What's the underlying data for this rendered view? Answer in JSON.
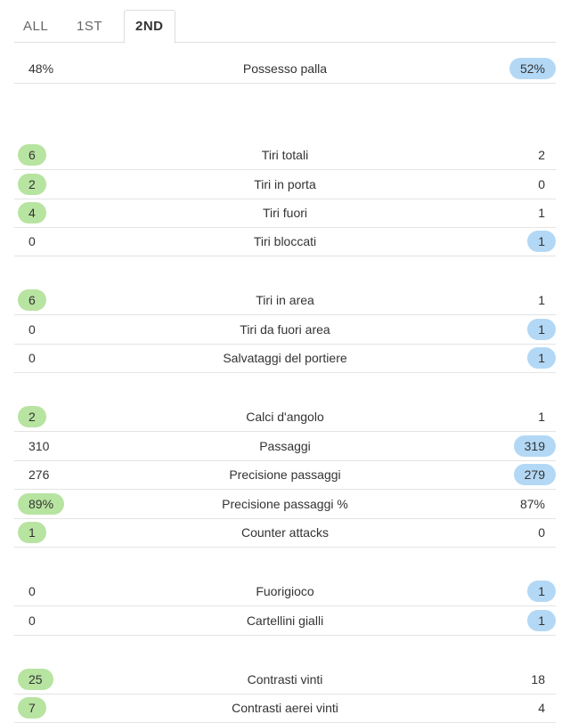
{
  "tabs": [
    {
      "label": "ALL",
      "active": false
    },
    {
      "label": "1ST",
      "active": false
    },
    {
      "label": "2ND",
      "active": true
    }
  ],
  "colors": {
    "home_highlight": "#b7e4a0",
    "away_highlight": "#b3d8f5"
  },
  "stats": [
    {
      "label": "Possesso palla",
      "home": "48%",
      "away": "52%",
      "leader": "away"
    },
    {
      "label": "Tiri totali",
      "home": "6",
      "away": "2",
      "leader": "home"
    },
    {
      "label": "Tiri in porta",
      "home": "2",
      "away": "0",
      "leader": "home"
    },
    {
      "label": "Tiri fuori",
      "home": "4",
      "away": "1",
      "leader": "home"
    },
    {
      "label": "Tiri bloccati",
      "home": "0",
      "away": "1",
      "leader": "away"
    },
    {
      "label": "Tiri in area",
      "home": "6",
      "away": "1",
      "leader": "home"
    },
    {
      "label": "Tiri da fuori area",
      "home": "0",
      "away": "1",
      "leader": "away"
    },
    {
      "label": "Salvataggi del portiere",
      "home": "0",
      "away": "1",
      "leader": "away"
    },
    {
      "label": "Calci d'angolo",
      "home": "2",
      "away": "1",
      "leader": "home"
    },
    {
      "label": "Passaggi",
      "home": "310",
      "away": "319",
      "leader": "away"
    },
    {
      "label": "Precisione passaggi",
      "home": "276",
      "away": "279",
      "leader": "away"
    },
    {
      "label": "Precisione passaggi %",
      "home": "89%",
      "away": "87%",
      "leader": "home"
    },
    {
      "label": "Counter attacks",
      "home": "1",
      "away": "0",
      "leader": "home"
    },
    {
      "label": "Fuorigioco",
      "home": "0",
      "away": "1",
      "leader": "away"
    },
    {
      "label": "Cartellini gialli",
      "home": "0",
      "away": "1",
      "leader": "away"
    },
    {
      "label": "Contrasti vinti",
      "home": "25",
      "away": "18",
      "leader": "home"
    },
    {
      "label": "Contrasti aerei vinti",
      "home": "7",
      "away": "4",
      "leader": "home"
    }
  ]
}
